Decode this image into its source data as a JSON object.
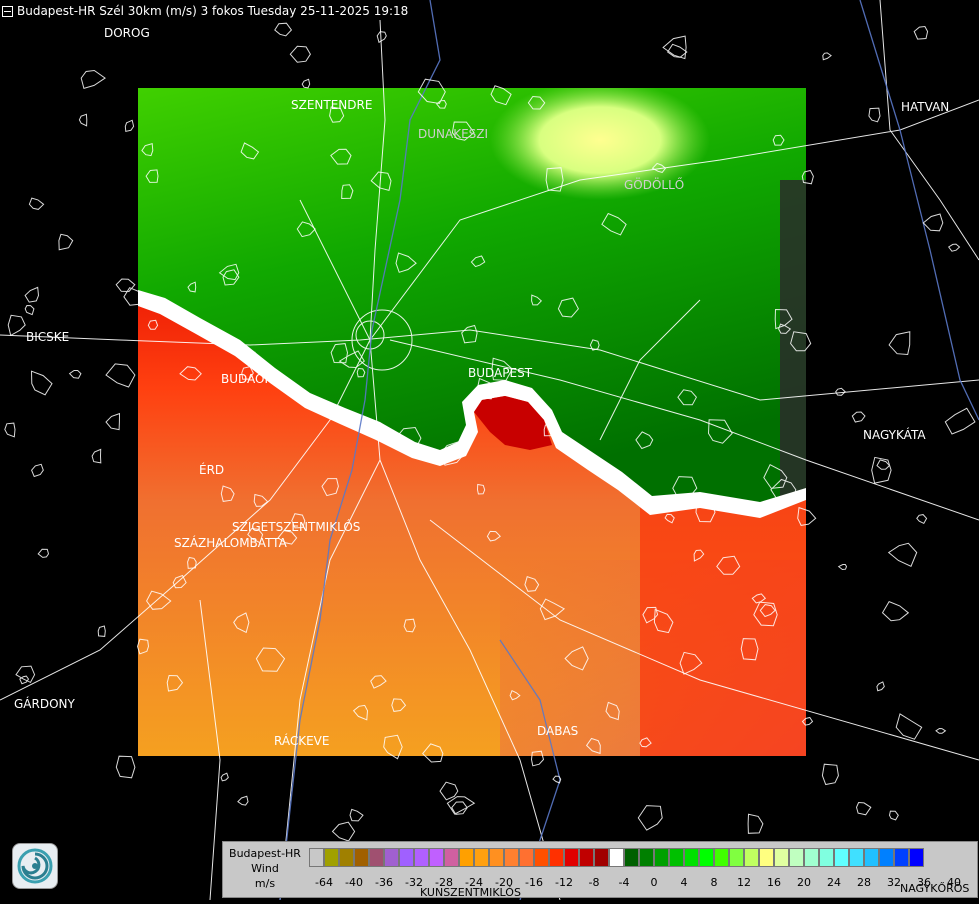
{
  "header": {
    "title": "Budapest-HR Szél 30km (m/s) 3 fokos Tuesday 25-11-2025 19:18"
  },
  "places": [
    {
      "name": "DOROG"
    },
    {
      "name": "SZENTENDRE"
    },
    {
      "name": "DUNAKESZI"
    },
    {
      "name": "GÖDÖLLŐ"
    },
    {
      "name": "HATVAN"
    },
    {
      "name": "BICSKE"
    },
    {
      "name": "BUDAÖRS"
    },
    {
      "name": "BUDAPEST"
    },
    {
      "name": "NAGYKÁTA"
    },
    {
      "name": "ÉRD"
    },
    {
      "name": "SZIGETSZENTMIKLÓS"
    },
    {
      "name": "SZÁZHALOMBATTA"
    },
    {
      "name": "GÁRDONY"
    },
    {
      "name": "RÁCKEVE"
    },
    {
      "name": "DABAS"
    },
    {
      "name": "NAGYKŐRÖS"
    },
    {
      "name": "KUNSZENTMIKLÓS"
    }
  ],
  "legend": {
    "title_line1": "Budapest-HR",
    "title_line2": "Wind",
    "title_line3": "m/s",
    "colors": [
      "#c8c8c8",
      "#a0a000",
      "#a08000",
      "#a06000",
      "#a05070",
      "#a060d0",
      "#a060ff",
      "#b060ff",
      "#c060ff",
      "#d060a0",
      "#ffa000",
      "#ffa010",
      "#ff9020",
      "#ff8030",
      "#ff7030",
      "#ff5000",
      "#ff3000",
      "#e00000",
      "#c00000",
      "#a00000",
      "#ffffff",
      "#006000",
      "#008000",
      "#00a000",
      "#00c000",
      "#00e000",
      "#00ff00",
      "#40ff00",
      "#80ff40",
      "#c0ff60",
      "#ffff80",
      "#e0ffa0",
      "#c0ffc0",
      "#a0ffd0",
      "#80ffe0",
      "#60ffff",
      "#40e0ff",
      "#20c0ff",
      "#0080ff",
      "#0040ff",
      "#0000ff"
    ],
    "ticks": [
      "-64",
      "-40",
      "-36",
      "-32",
      "-28",
      "-24",
      "-20",
      "-16",
      "-12",
      "-8",
      "-4",
      "0",
      "4",
      "8",
      "12",
      "16",
      "20",
      "24",
      "28",
      "32",
      "36",
      "40"
    ]
  }
}
